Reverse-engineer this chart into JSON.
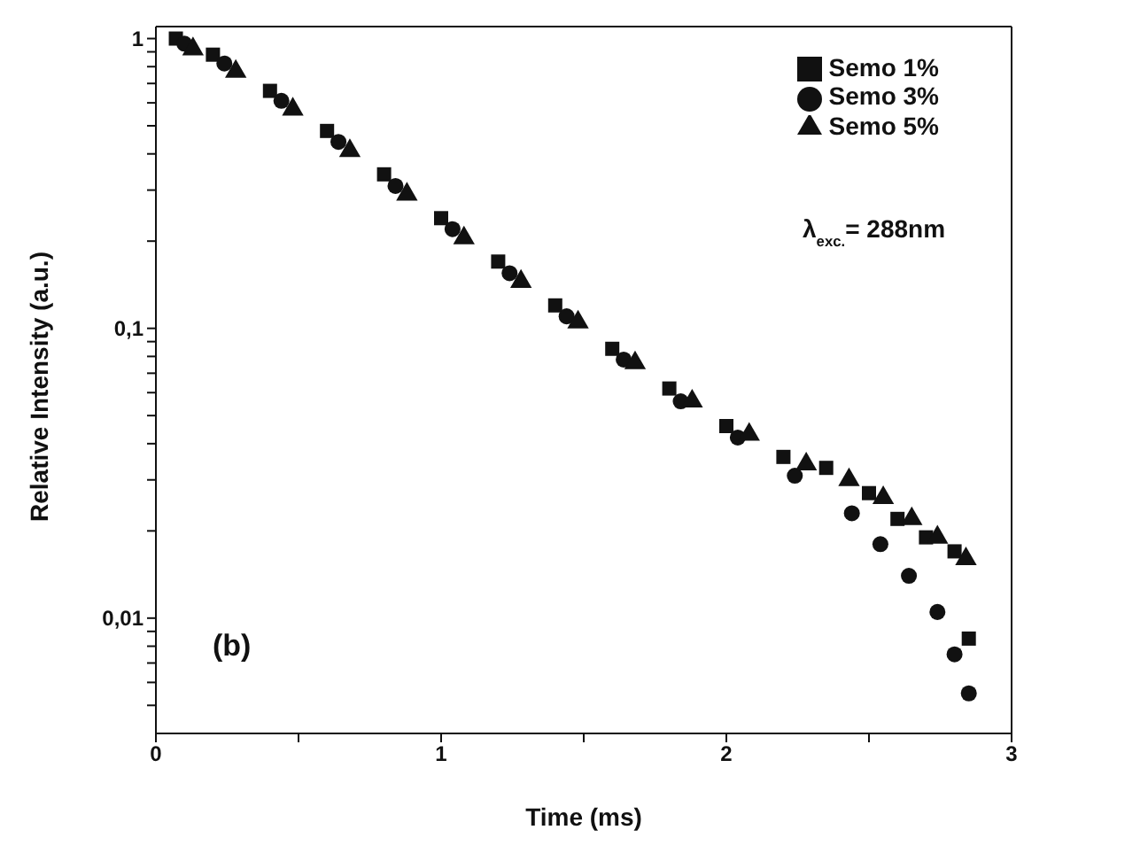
{
  "chart_data": {
    "type": "scatter",
    "xlabel": "Time (ms)",
    "ylabel": "Relative Intensity (a.u.)",
    "log": "y",
    "grid": false,
    "legend": "top right",
    "annotations": [
      "λ$_{exc.}$= 288nm",
      "(b)"
    ],
    "xlim": [
      0,
      3
    ],
    "xticks": [
      0,
      {
        "value": 0.5,
        "label": null
      },
      1,
      {
        "value": 1.5,
        "label": null
      },
      2,
      {
        "value": 2.5,
        "label": null
      },
      3
    ],
    "ylim": [
      0.004,
      1.1
    ],
    "yticks": [
      {
        "value": 0.005,
        "label": null
      },
      {
        "value": 0.006,
        "label": null
      },
      {
        "value": 0.007,
        "label": null
      },
      {
        "value": 0.008,
        "label": null
      },
      {
        "value": 0.009,
        "label": null
      },
      {
        "value": 0.01,
        "label": "0,01"
      },
      {
        "value": 0.02,
        "label": null
      },
      {
        "value": 0.03,
        "label": null
      },
      {
        "value": 0.04,
        "label": null
      },
      {
        "value": 0.05,
        "label": null
      },
      {
        "value": 0.06,
        "label": null
      },
      {
        "value": 0.07,
        "label": null
      },
      {
        "value": 0.08,
        "label": null
      },
      {
        "value": 0.09,
        "label": null
      },
      {
        "value": 0.1,
        "label": "0,1"
      },
      {
        "value": 0.2,
        "label": null
      },
      {
        "value": 0.3,
        "label": null
      },
      {
        "value": 0.4,
        "label": null
      },
      {
        "value": 0.5,
        "label": null
      },
      {
        "value": 0.6,
        "label": null
      },
      {
        "value": 0.7,
        "label": null
      },
      {
        "value": 0.8,
        "label": null
      },
      {
        "value": 0.9,
        "label": null
      },
      {
        "value": 1,
        "label": "1"
      }
    ],
    "series": [
      {
        "name": "Semo 1%",
        "color": "#111111",
        "marker": "square",
        "x": [
          0.07,
          0.2,
          0.4,
          0.6,
          0.8,
          1.0,
          1.2,
          1.4,
          1.6,
          1.8,
          2.0,
          2.2,
          2.35,
          2.5,
          2.6,
          2.7,
          2.8,
          2.85
        ],
        "values": [
          1,
          0.88,
          0.66,
          0.48,
          0.34,
          0.24,
          0.17,
          0.12,
          0.085,
          0.062,
          0.046,
          0.036,
          0.033,
          0.027,
          0.022,
          0.019,
          0.017,
          0.0085
        ]
      },
      {
        "name": "Semo 3%",
        "color": "#111111",
        "marker": "circle",
        "x": [
          0.1,
          0.24,
          0.44,
          0.64,
          0.84,
          1.04,
          1.24,
          1.44,
          1.64,
          1.84,
          2.04,
          2.24,
          2.44,
          2.54,
          2.64,
          2.74,
          2.8,
          2.85
        ],
        "values": [
          0.96,
          0.82,
          0.61,
          0.44,
          0.31,
          0.22,
          0.155,
          0.11,
          0.078,
          0.056,
          0.042,
          0.031,
          0.023,
          0.018,
          0.014,
          0.0105,
          0.0075,
          0.0055
        ]
      },
      {
        "name": "Semo 5%",
        "color": "#111111",
        "marker": "triangle",
        "x": [
          0.13,
          0.28,
          0.48,
          0.68,
          0.88,
          1.08,
          1.28,
          1.48,
          1.68,
          1.88,
          2.08,
          2.28,
          2.43,
          2.55,
          2.65,
          2.74,
          2.84
        ],
        "values": [
          0.92,
          0.77,
          0.57,
          0.41,
          0.29,
          0.205,
          0.145,
          0.105,
          0.076,
          0.056,
          0.043,
          0.034,
          0.03,
          0.026,
          0.022,
          0.019,
          0.016
        ]
      }
    ]
  }
}
